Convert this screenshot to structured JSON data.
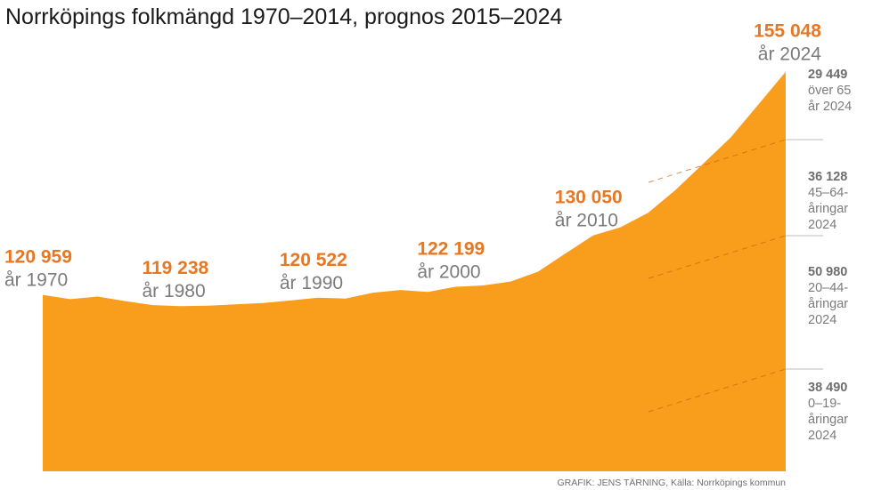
{
  "chart_data": {
    "type": "area",
    "title": "Norrköpings folkmängd 1970–2014, prognos 2015–2024",
    "credit": "GRAFIK: JENS TÄRNING, Källa: Norrköpings kommun",
    "x": [
      1970,
      1972,
      1974,
      1976,
      1978,
      1980,
      1982,
      1984,
      1986,
      1988,
      1990,
      1992,
      1994,
      1996,
      1998,
      2000,
      2002,
      2004,
      2006,
      2008,
      2010,
      2012,
      2014,
      2016,
      2018,
      2020,
      2022,
      2024
    ],
    "y": [
      120959,
      120300,
      120700,
      120000,
      119400,
      119238,
      119300,
      119500,
      119700,
      120100,
      120522,
      120400,
      121300,
      121700,
      121400,
      122199,
      122400,
      123000,
      124500,
      127300,
      130050,
      131300,
      133500,
      137000,
      141000,
      145000,
      150000,
      155048
    ],
    "ylim": [
      94000,
      156500
    ],
    "area_color": "#f99d1c",
    "value_color": "#e87722",
    "callouts": [
      {
        "year": 1970,
        "value": "120 959",
        "label": "år 1970"
      },
      {
        "year": 1980,
        "value": "119 238",
        "label": "år 1980"
      },
      {
        "year": 1990,
        "value": "120 522",
        "label": "år 1990"
      },
      {
        "year": 2000,
        "value": "122 199",
        "label": "år 2000"
      },
      {
        "year": 2010,
        "value": "130 050",
        "label": "år 2010"
      },
      {
        "year": 2024,
        "value": "155 048",
        "label": "år 2024"
      }
    ],
    "segments_2024": [
      {
        "value": "29 449",
        "lines": [
          "över 65",
          "år 2024"
        ]
      },
      {
        "value": "36 128",
        "lines": [
          "45–64-",
          "åringar",
          "2024"
        ]
      },
      {
        "value": "50 980",
        "lines": [
          "20–44-",
          "åringar",
          "2024"
        ]
      },
      {
        "value": "38 490",
        "lines": [
          "0–19-",
          "åringar",
          "2024"
        ]
      }
    ]
  }
}
